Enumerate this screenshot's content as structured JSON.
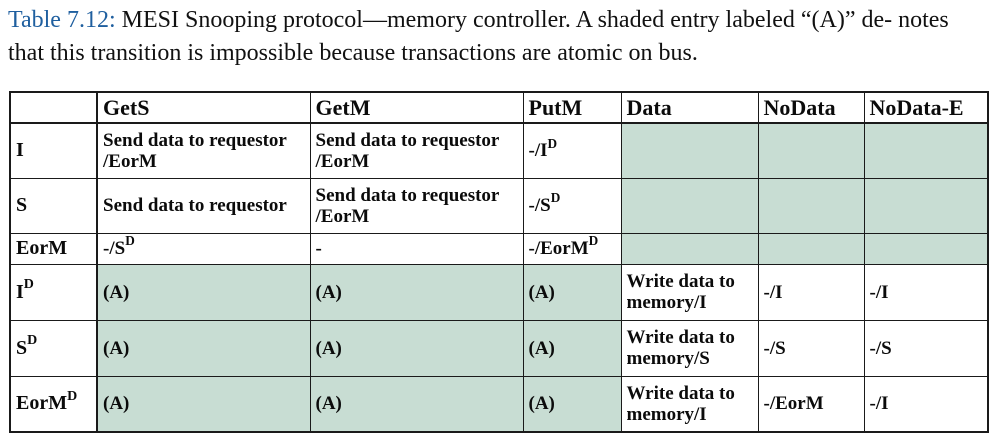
{
  "caption": {
    "label": "Table 7.12:",
    "text": " MESI Snooping protocol—memory controller. A shaded entry labeled “(A)” de- notes that this transition is impossible because transactions are atomic on bus."
  },
  "table": {
    "columns": [
      "GetS",
      "GetM",
      "PutM",
      "Data",
      "NoData",
      "NoData-E"
    ],
    "rows": [
      {
        "state": "I",
        "state_sup": "",
        "cells": [
          {
            "text": "Send data to requestor /EorM",
            "sup": ""
          },
          {
            "text": "Send data to requestor /EorM",
            "sup": ""
          },
          {
            "text": "-/I",
            "sup": "D"
          },
          {
            "text": "",
            "sup": "",
            "shaded": true
          },
          {
            "text": "",
            "sup": "",
            "shaded": true
          },
          {
            "text": "",
            "sup": "",
            "shaded": true
          }
        ]
      },
      {
        "state": "S",
        "state_sup": "",
        "cells": [
          {
            "text": "Send data to requestor",
            "sup": ""
          },
          {
            "text": "Send data to requestor /EorM",
            "sup": ""
          },
          {
            "text": "-/S",
            "sup": "D"
          },
          {
            "text": "",
            "sup": "",
            "shaded": true
          },
          {
            "text": "",
            "sup": "",
            "shaded": true
          },
          {
            "text": "",
            "sup": "",
            "shaded": true
          }
        ]
      },
      {
        "state": "EorM",
        "state_sup": "",
        "cells": [
          {
            "text": "-/S",
            "sup": "D"
          },
          {
            "text": "-",
            "sup": ""
          },
          {
            "text": "-/EorM",
            "sup": "D"
          },
          {
            "text": "",
            "sup": "",
            "shaded": true
          },
          {
            "text": "",
            "sup": "",
            "shaded": true
          },
          {
            "text": "",
            "sup": "",
            "shaded": true
          }
        ]
      },
      {
        "state": "I",
        "state_sup": "D",
        "cells": [
          {
            "text": "(A)",
            "sup": "",
            "shaded": true
          },
          {
            "text": "(A)",
            "sup": "",
            "shaded": true
          },
          {
            "text": "(A)",
            "sup": "",
            "shaded": true
          },
          {
            "text": "Write data to memory/I",
            "sup": ""
          },
          {
            "text": "-/I",
            "sup": ""
          },
          {
            "text": "-/I",
            "sup": ""
          }
        ]
      },
      {
        "state": "S",
        "state_sup": "D",
        "cells": [
          {
            "text": "(A)",
            "sup": "",
            "shaded": true
          },
          {
            "text": "(A)",
            "sup": "",
            "shaded": true
          },
          {
            "text": "(A)",
            "sup": "",
            "shaded": true
          },
          {
            "text": "Write data to memory/S",
            "sup": ""
          },
          {
            "text": "-/S",
            "sup": ""
          },
          {
            "text": "-/S",
            "sup": ""
          }
        ]
      },
      {
        "state": "EorM",
        "state_sup": "D",
        "cells": [
          {
            "text": "(A)",
            "sup": "",
            "shaded": true
          },
          {
            "text": "(A)",
            "sup": "",
            "shaded": true
          },
          {
            "text": "(A)",
            "sup": "",
            "shaded": true
          },
          {
            "text": "Write data to memory/I",
            "sup": ""
          },
          {
            "text": "-/EorM",
            "sup": ""
          },
          {
            "text": "-/I",
            "sup": ""
          }
        ]
      }
    ]
  },
  "colors": {
    "shade": "#c8ddd3",
    "caption_label": "#1f5f9f"
  }
}
